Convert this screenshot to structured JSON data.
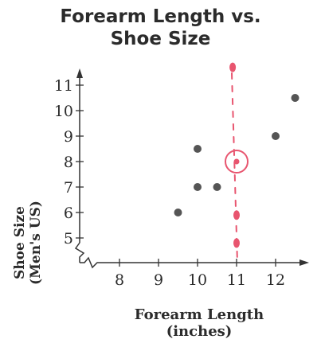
{
  "chart_data": {
    "type": "scatter",
    "title_lines": [
      "Forearm Length vs.",
      "Shoe Size"
    ],
    "xlabel_lines": [
      "Forearm Length",
      "(inches)"
    ],
    "ylabel_lines": [
      "Shoe Size",
      "(Men's US)"
    ],
    "xlim": [
      7,
      13
    ],
    "ylim": [
      4,
      11.5
    ],
    "x_ticks": [
      8,
      9,
      10,
      11,
      12
    ],
    "y_ticks": [
      5,
      6,
      7,
      8,
      9,
      10,
      11
    ],
    "axis_breaks": [
      "x",
      "y"
    ],
    "grid": false,
    "series": [
      {
        "color": "#555555",
        "points": [
          {
            "x": 9.5,
            "y": 6.0
          },
          {
            "x": 10.0,
            "y": 7.0
          },
          {
            "x": 10.0,
            "y": 8.5
          },
          {
            "x": 10.5,
            "y": 7.0
          },
          {
            "x": 12.0,
            "y": 9.0
          },
          {
            "x": 12.5,
            "y": 10.5
          }
        ]
      }
    ],
    "annotations": {
      "color": "#e8556f",
      "dashed_vertical_x": 11,
      "circled_point": {
        "x": 11,
        "y": 8
      },
      "marks": [
        {
          "x": 10.9,
          "y": 11.7
        },
        {
          "x": 11.0,
          "y": 5.9
        },
        {
          "x": 11.0,
          "y": 4.8
        }
      ]
    }
  }
}
